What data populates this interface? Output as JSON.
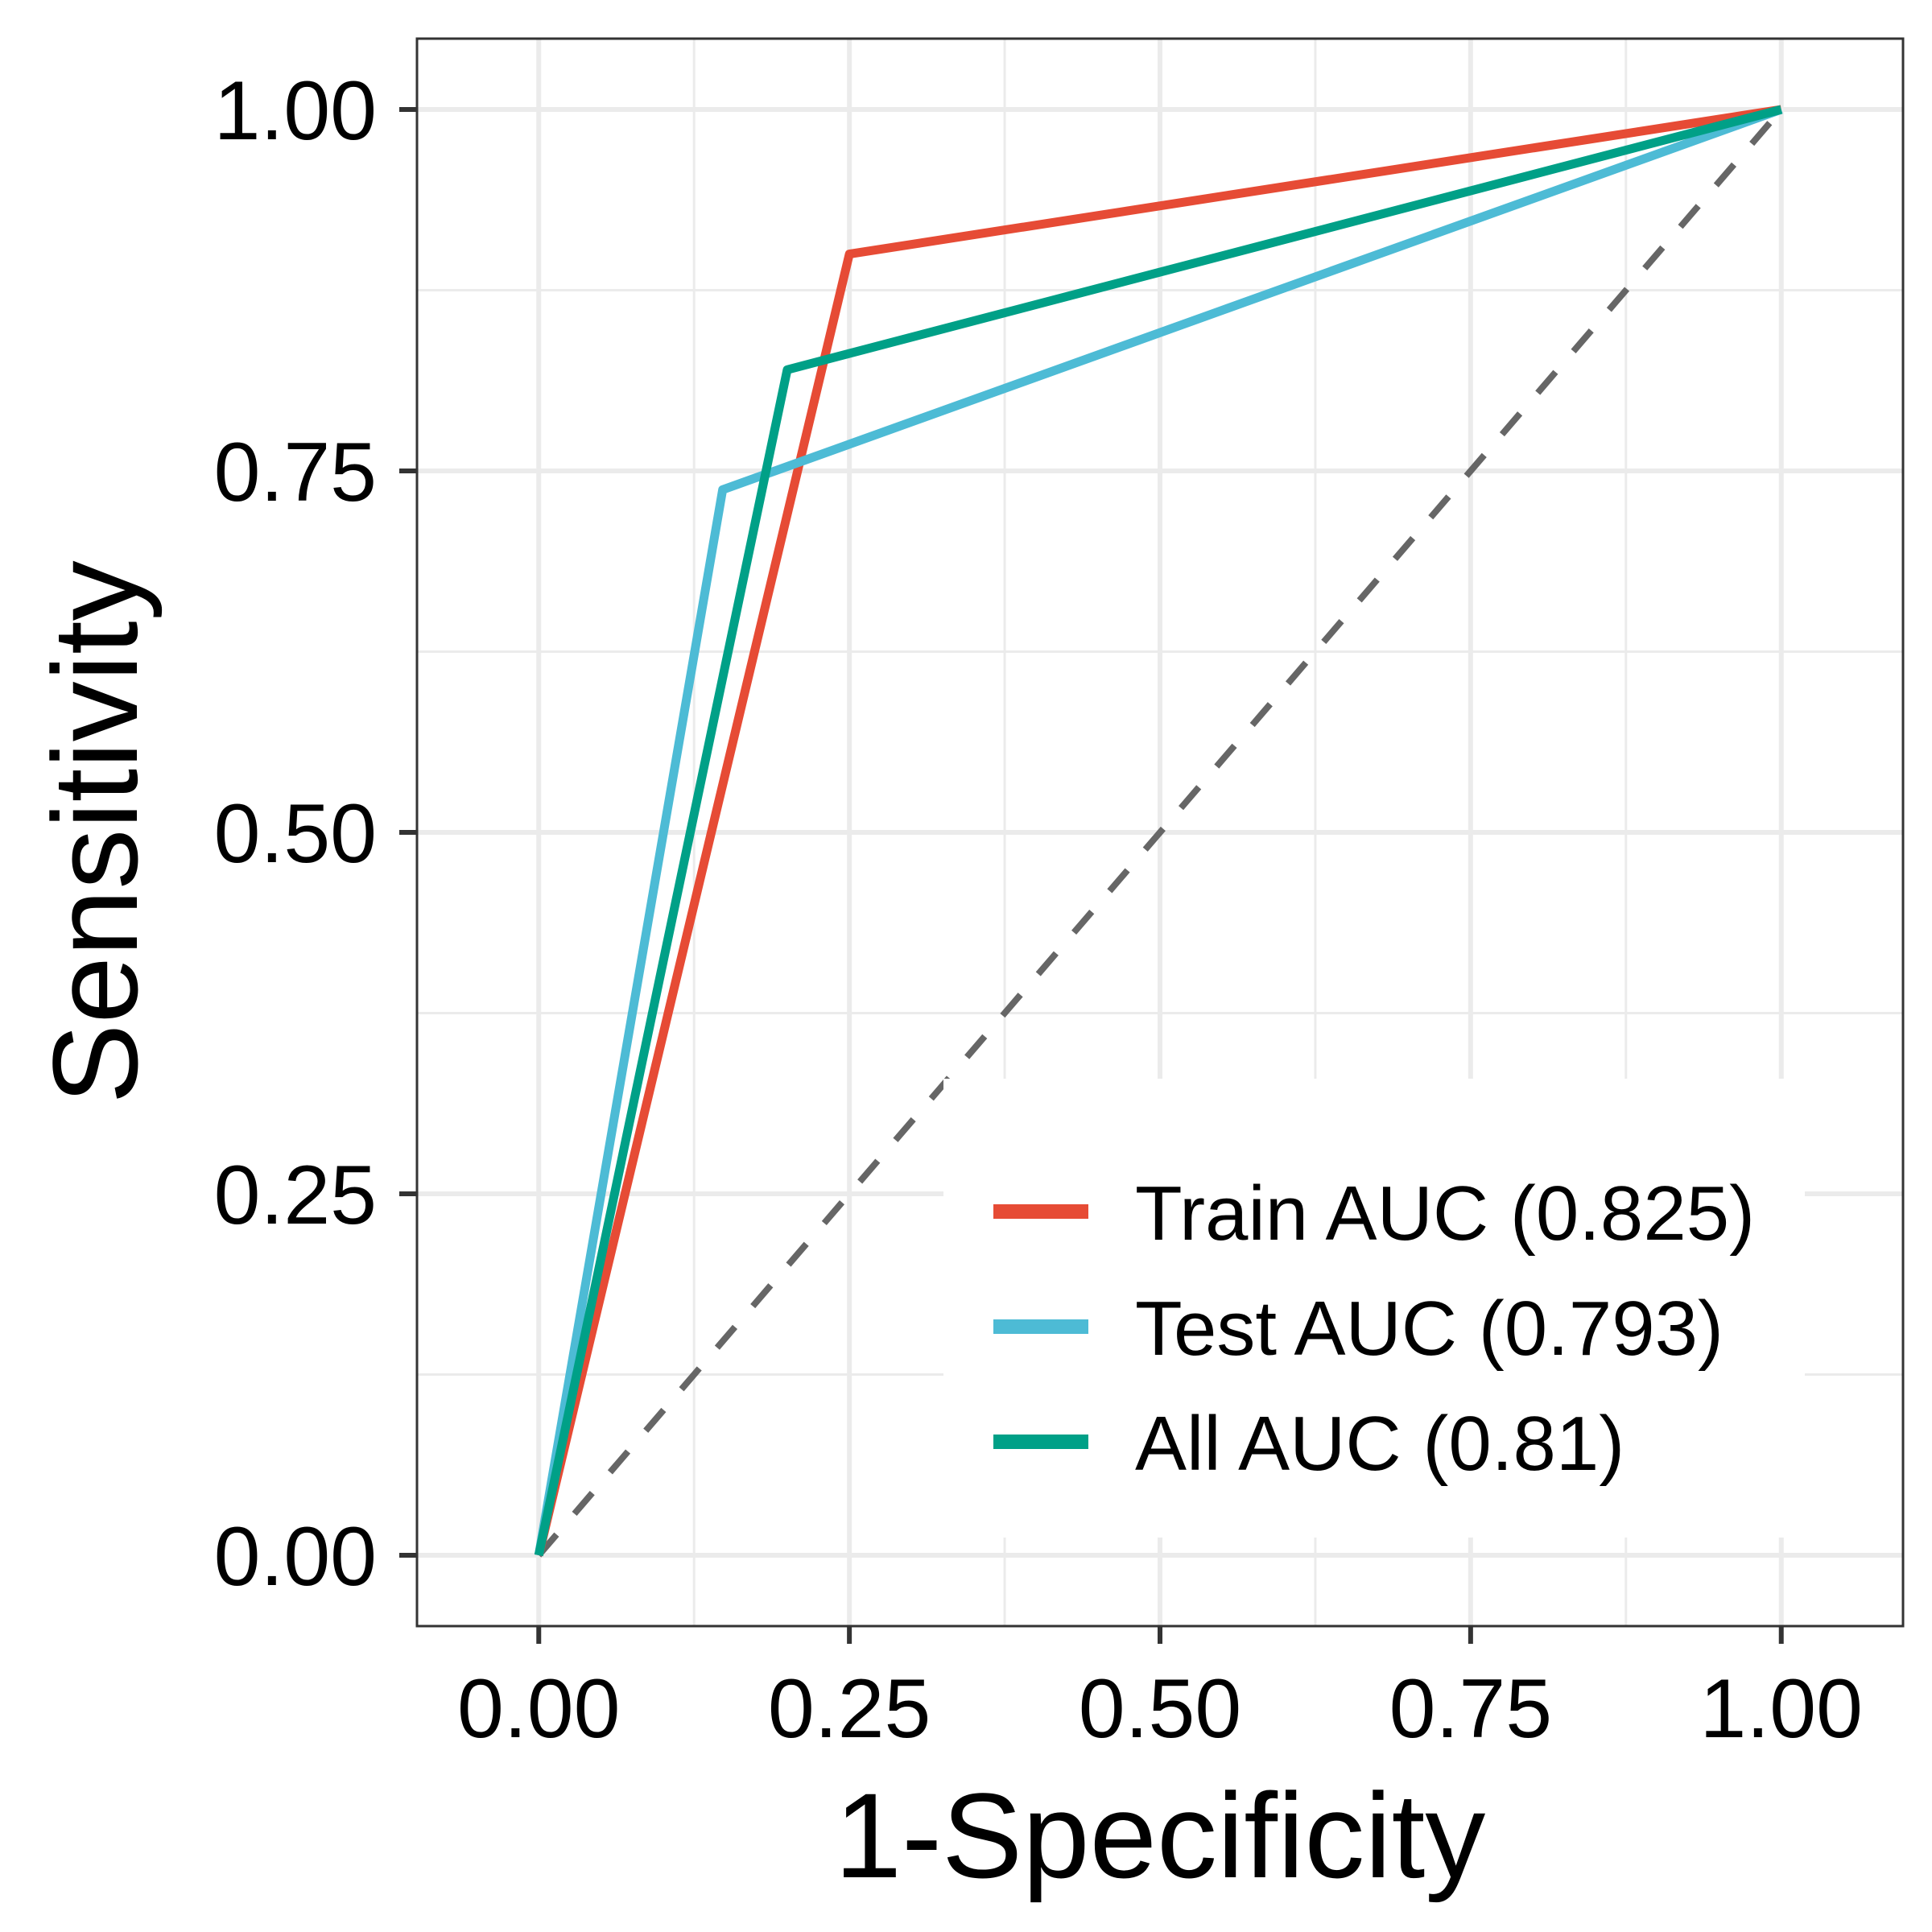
{
  "chart_data": {
    "type": "line",
    "title": "",
    "xlabel": "1-Specificity",
    "ylabel": "Sensitivity",
    "xlim": [
      -0.098,
      2.098
    ],
    "ylim": [
      -0.049,
      1.049
    ],
    "xlim_display": [
      -0.098,
      1.098
    ],
    "x_ticks": [
      "0.00",
      "0.25",
      "0.50",
      "0.75",
      "1.00"
    ],
    "y_ticks": [
      "0.00",
      "0.25",
      "0.50",
      "0.75",
      "1.00"
    ],
    "grid": true,
    "legend_position": "bottom-right",
    "series": [
      {
        "name": "Train AUC (0.825)",
        "color": "#E64B35",
        "x": [
          0,
          0.25,
          1
        ],
        "y": [
          0,
          0.9,
          1
        ]
      },
      {
        "name": "Test AUC (0.793)",
        "color": "#4DBBD5",
        "x": [
          0,
          0.148,
          1
        ],
        "y": [
          0,
          0.737,
          1
        ]
      },
      {
        "name": "All AUC (0.81)",
        "color": "#00A087",
        "x": [
          0,
          0.2,
          1
        ],
        "y": [
          0,
          0.82,
          1
        ]
      }
    ],
    "reference_line": {
      "color": "#666666",
      "x": [
        0,
        1
      ],
      "y": [
        0,
        1
      ]
    }
  }
}
